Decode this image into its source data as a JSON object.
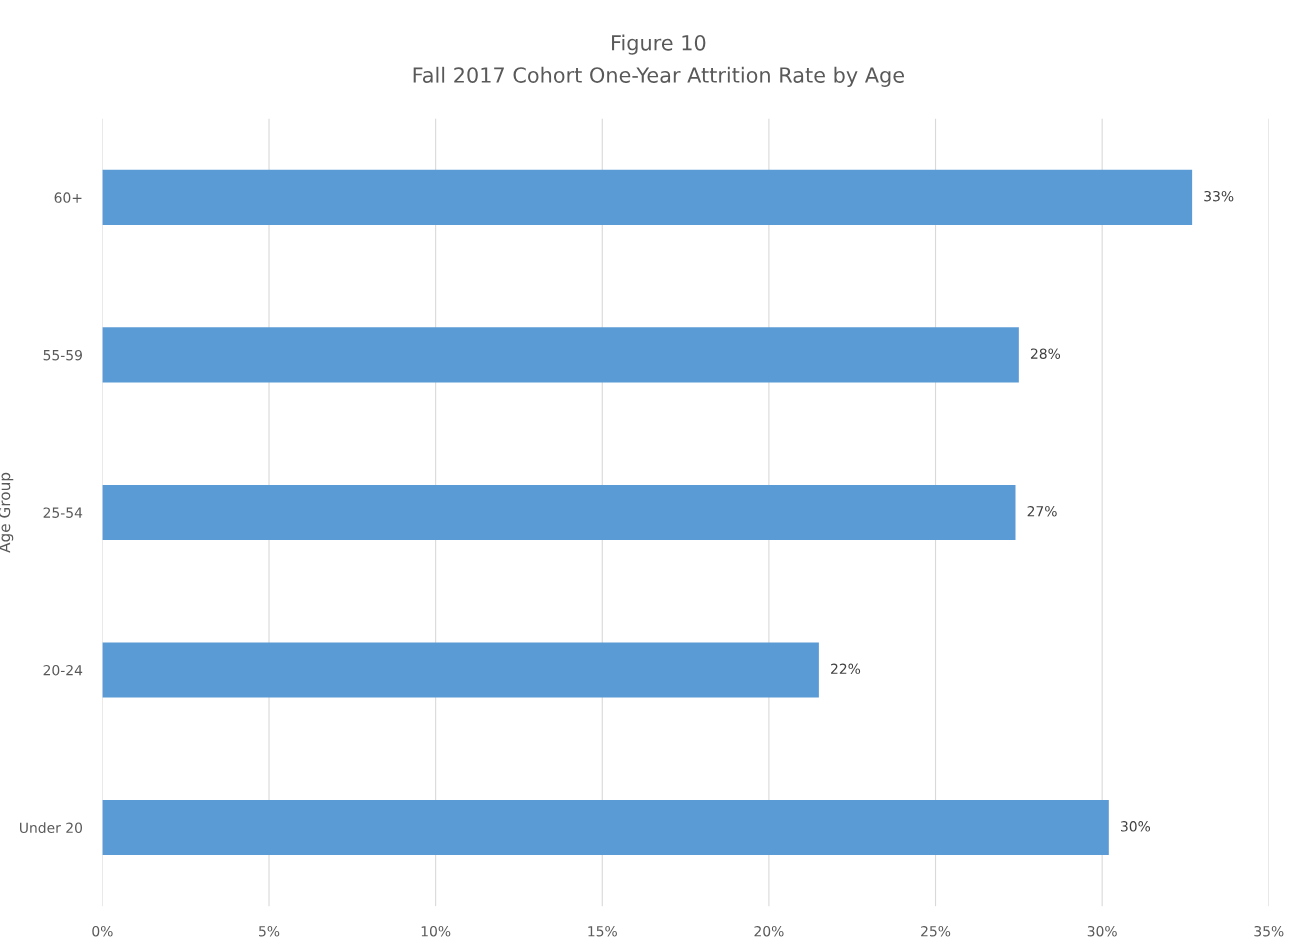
{
  "chart_data": {
    "type": "bar",
    "orientation": "horizontal",
    "title": "Figure 10",
    "subtitle": "Fall 2017 Cohort One-Year Attrition Rate by Age",
    "ylabel": "Age Group",
    "categories": [
      "60+",
      "55-59",
      "25-54",
      "20-24",
      "Under 20"
    ],
    "values": [
      32.7,
      27.5,
      27.4,
      21.5,
      30.2
    ],
    "value_labels": [
      "33%",
      "28%",
      "27%",
      "22%",
      "30%"
    ],
    "color": "#5b9bd5",
    "xlim": [
      0,
      35
    ],
    "xticks": [
      {
        "value": 0,
        "label": "0%"
      },
      {
        "value": 5,
        "label": "5%"
      },
      {
        "value": 10,
        "label": "10%"
      },
      {
        "value": 15,
        "label": "15%"
      },
      {
        "value": 20,
        "label": "20%"
      },
      {
        "value": 25,
        "label": "25%"
      },
      {
        "value": 30,
        "label": "30%"
      },
      {
        "value": 35,
        "label": "35%"
      }
    ],
    "grid": "x",
    "legend": false
  }
}
